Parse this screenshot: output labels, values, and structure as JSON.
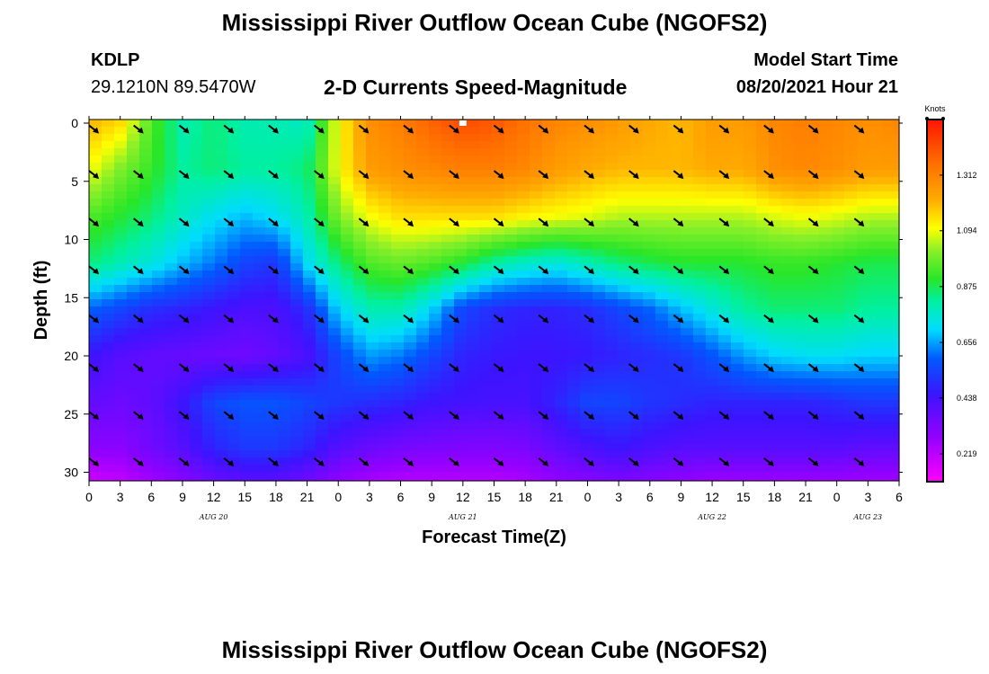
{
  "page": {
    "title_top": "Mississippi River Outflow Ocean Cube (NGOFS2)",
    "title_bottom": "Mississippi River Outflow Ocean Cube (NGOFS2)",
    "station_id": "KDLP",
    "station_coords": "29.1210N  89.5470W",
    "subtitle": "2-D Currents Speed-Magnitude",
    "model_start_label": "Model Start Time",
    "model_start_value": "08/20/2021 Hour 21"
  },
  "colors": {
    "arrow": "#000000",
    "surface_marker": "#ffffff"
  },
  "chart_data": {
    "type": "heatmap",
    "xlabel": "Forecast Time(Z)",
    "ylabel": "Depth (ft)",
    "colorbar_label": "Knots",
    "colorbar_ticks": [
      0.219,
      0.438,
      0.656,
      0.875,
      1.094,
      1.312
    ],
    "colorbar_tick_labels": [
      "0.219",
      "0.438",
      "0.656",
      "0.875",
      "1.094",
      "1.312"
    ],
    "colorbar_range": [
      0.11,
      1.53
    ],
    "xlim": [
      0,
      78
    ],
    "x_ticks": [
      0,
      3,
      6,
      9,
      12,
      15,
      18,
      21,
      24,
      27,
      30,
      33,
      36,
      39,
      42,
      45,
      48,
      51,
      54,
      57,
      60,
      63,
      66,
      69,
      72,
      75,
      78
    ],
    "x_tick_labels": [
      "0",
      "3",
      "6",
      "9",
      "12",
      "15",
      "18",
      "21",
      "0",
      "3",
      "6",
      "9",
      "12",
      "15",
      "18",
      "21",
      "0",
      "3",
      "6",
      "9",
      "12",
      "15",
      "18",
      "21",
      "0",
      "3",
      "6"
    ],
    "date_labels": [
      {
        "x": 12,
        "text": "AUG 20"
      },
      {
        "x": 36,
        "text": "AUG 21"
      },
      {
        "x": 60,
        "text": "AUG 22"
      },
      {
        "x": 75,
        "text": "AUG 23"
      }
    ],
    "ylim": [
      0,
      31
    ],
    "y_ticks": [
      0,
      5,
      10,
      15,
      20,
      25,
      30
    ],
    "y_tick_labels": [
      "0",
      "5",
      "10",
      "15",
      "20",
      "25",
      "30"
    ],
    "y_inverted": true,
    "hours": [
      0,
      3,
      6,
      9,
      12,
      15,
      18,
      21,
      24,
      27,
      30,
      33,
      36,
      39,
      42,
      45,
      48,
      51,
      54,
      57,
      60,
      63,
      66,
      69,
      72,
      75,
      78
    ],
    "depths": [
      0,
      4,
      8,
      12,
      16,
      20,
      24,
      28,
      31
    ],
    "speed_knots": [
      [
        1.2,
        1.15,
        0.95,
        0.8,
        0.85,
        0.8,
        0.8,
        0.78,
        1.1,
        1.28,
        1.32,
        1.38,
        1.42,
        1.4,
        1.35,
        1.3,
        1.28,
        1.25,
        1.22,
        1.2,
        1.25,
        1.25,
        1.3,
        1.32,
        1.3,
        1.28,
        1.3
      ],
      [
        1.1,
        1.0,
        0.92,
        0.82,
        0.85,
        0.82,
        0.82,
        0.85,
        1.1,
        1.25,
        1.28,
        1.3,
        1.32,
        1.32,
        1.3,
        1.25,
        1.22,
        1.2,
        1.2,
        1.2,
        1.22,
        1.22,
        1.28,
        1.3,
        1.28,
        1.25,
        1.25
      ],
      [
        0.95,
        0.9,
        0.85,
        0.78,
        0.72,
        0.68,
        0.72,
        0.8,
        1.0,
        1.1,
        1.15,
        1.15,
        1.15,
        1.15,
        1.12,
        1.1,
        1.08,
        1.05,
        1.05,
        1.05,
        1.05,
        1.05,
        1.08,
        1.1,
        1.08,
        1.05,
        1.05
      ],
      [
        0.85,
        0.8,
        0.75,
        0.68,
        0.62,
        0.55,
        0.52,
        0.72,
        0.85,
        0.95,
        0.98,
        0.95,
        0.9,
        0.82,
        0.78,
        0.75,
        0.8,
        0.85,
        0.88,
        0.9,
        0.9,
        0.9,
        0.92,
        0.92,
        0.9,
        0.88,
        0.88
      ],
      [
        0.6,
        0.55,
        0.5,
        0.48,
        0.45,
        0.42,
        0.42,
        0.5,
        0.7,
        0.8,
        0.8,
        0.7,
        0.55,
        0.5,
        0.48,
        0.48,
        0.5,
        0.55,
        0.6,
        0.68,
        0.75,
        0.82,
        0.85,
        0.85,
        0.85,
        0.82,
        0.82
      ],
      [
        0.45,
        0.4,
        0.38,
        0.37,
        0.36,
        0.35,
        0.38,
        0.42,
        0.55,
        0.65,
        0.62,
        0.55,
        0.48,
        0.46,
        0.45,
        0.45,
        0.46,
        0.48,
        0.5,
        0.52,
        0.58,
        0.65,
        0.7,
        0.72,
        0.72,
        0.7,
        0.7
      ],
      [
        0.38,
        0.36,
        0.38,
        0.45,
        0.55,
        0.58,
        0.58,
        0.55,
        0.52,
        0.5,
        0.48,
        0.45,
        0.44,
        0.43,
        0.43,
        0.48,
        0.55,
        0.55,
        0.52,
        0.5,
        0.48,
        0.48,
        0.48,
        0.48,
        0.5,
        0.52,
        0.52
      ],
      [
        0.3,
        0.3,
        0.35,
        0.4,
        0.48,
        0.52,
        0.52,
        0.48,
        0.4,
        0.36,
        0.34,
        0.33,
        0.32,
        0.32,
        0.33,
        0.38,
        0.42,
        0.45,
        0.42,
        0.4,
        0.4,
        0.4,
        0.4,
        0.4,
        0.4,
        0.38,
        0.38
      ],
      [
        0.18,
        0.2,
        0.25,
        0.3,
        0.35,
        0.38,
        0.38,
        0.34,
        0.28,
        0.24,
        0.22,
        0.22,
        0.22,
        0.22,
        0.24,
        0.28,
        0.3,
        0.32,
        0.3,
        0.28,
        0.26,
        0.26,
        0.26,
        0.26,
        0.26,
        0.25,
        0.25
      ]
    ],
    "arrow_depths": [
      0.2,
      4.1,
      8.2,
      12.3,
      16.5,
      20.7,
      24.8,
      28.8
    ],
    "arrow_hours": [
      0,
      4.3,
      8.7,
      13,
      17.3,
      21.7,
      26,
      30.3,
      34.7,
      39,
      43.3,
      47.7,
      52,
      56.3,
      60.7,
      65,
      69.3,
      73.7
    ],
    "arrow_direction": "southeast",
    "surface_marker_hour": 36
  }
}
